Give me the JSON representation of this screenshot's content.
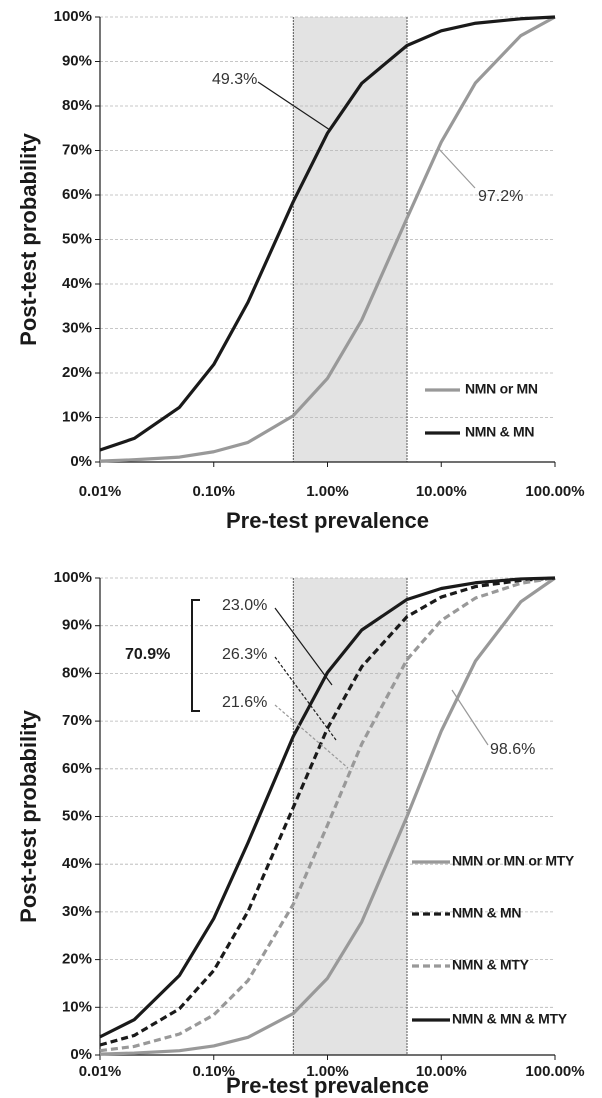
{
  "chart_data": [
    {
      "type": "line",
      "xscale": "log",
      "grid": true,
      "legend": "lower right",
      "xlabel": "Pre-test prevalence",
      "ylabel": "Post-test probability",
      "shaded_range": [
        0.5,
        5
      ],
      "x": [
        0.01,
        0.02,
        0.05,
        0.1,
        0.2,
        0.5,
        1,
        2,
        5,
        10,
        20,
        50,
        100
      ],
      "xlim": [
        0.01,
        100
      ],
      "xticks": [
        {
          "value": 0.01,
          "label": "0.01%"
        },
        {
          "value": 0.1,
          "label": "0.10%"
        },
        {
          "value": 1,
          "label": "1.00%"
        },
        {
          "value": 10,
          "label": "10.00%"
        },
        {
          "value": 100,
          "label": "100.00%"
        }
      ],
      "ylim": [
        0,
        100
      ],
      "yticks": [
        {
          "value": 0,
          "label": "0%"
        },
        {
          "value": 10,
          "label": "10%"
        },
        {
          "value": 20,
          "label": "20%"
        },
        {
          "value": 30,
          "label": "30%"
        },
        {
          "value": 40,
          "label": "40%"
        },
        {
          "value": 50,
          "label": "50%"
        },
        {
          "value": 60,
          "label": "60%"
        },
        {
          "value": 70,
          "label": "70%"
        },
        {
          "value": 80,
          "label": "80%"
        },
        {
          "value": 90,
          "label": "90%"
        },
        {
          "value": 100,
          "label": "100%"
        }
      ],
      "annotations": [
        "49.3%",
        "97.2%"
      ],
      "series": [
        {
          "name": "NMN or MN",
          "color": "#999999",
          "linestyle": "solid",
          "values": [
            0.2,
            0.5,
            1.1,
            2.3,
            4.4,
            10.4,
            18.8,
            31.9,
            54.8,
            71.9,
            85.2,
            95.8,
            100
          ]
        },
        {
          "name": "NMN & MN",
          "color": "#1a1a1a",
          "linestyle": "solid",
          "values": [
            2.7,
            5.3,
            12.3,
            21.9,
            35.9,
            58.5,
            73.9,
            85.1,
            93.6,
            96.9,
            98.6,
            99.6,
            100
          ]
        }
      ]
    },
    {
      "type": "line",
      "xscale": "log",
      "grid": true,
      "legend": "lower right",
      "xlabel": "Pre-test prevalence",
      "ylabel": "Post-test probability",
      "shaded_range": [
        0.5,
        5
      ],
      "x": [
        0.01,
        0.02,
        0.05,
        0.1,
        0.2,
        0.5,
        1,
        2,
        5,
        10,
        20,
        50,
        100
      ],
      "xlim": [
        0.01,
        100
      ],
      "xticks": [
        {
          "value": 0.01,
          "label": "0.01%"
        },
        {
          "value": 0.1,
          "label": "0.10%"
        },
        {
          "value": 1,
          "label": "1.00%"
        },
        {
          "value": 10,
          "label": "10.00%"
        },
        {
          "value": 100,
          "label": "100.00%"
        }
      ],
      "ylim": [
        0,
        100
      ],
      "yticks": [
        {
          "value": 0,
          "label": "0%"
        },
        {
          "value": 10,
          "label": "10%"
        },
        {
          "value": 20,
          "label": "20%"
        },
        {
          "value": 30,
          "label": "30%"
        },
        {
          "value": 40,
          "label": "40%"
        },
        {
          "value": 50,
          "label": "50%"
        },
        {
          "value": 60,
          "label": "60%"
        },
        {
          "value": 70,
          "label": "70%"
        },
        {
          "value": 80,
          "label": "80%"
        },
        {
          "value": 90,
          "label": "90%"
        },
        {
          "value": 100,
          "label": "100%"
        }
      ],
      "annotations": [
        "70.9%",
        "23.0%",
        "26.3%",
        "21.6%",
        "98.6%"
      ],
      "series": [
        {
          "name": "NMN or MN or MTY",
          "color": "#999999",
          "linestyle": "solid",
          "values": [
            0.2,
            0.4,
            0.9,
            1.9,
            3.7,
            8.7,
            16.1,
            27.9,
            50.0,
            67.9,
            82.6,
            95.0,
            100
          ]
        },
        {
          "name": "NMN & MN",
          "color": "#1a1a1a",
          "linestyle": "dashed",
          "values": [
            2.1,
            4.1,
            9.7,
            17.7,
            30.1,
            51.9,
            68.5,
            81.4,
            91.9,
            96.0,
            98.2,
            99.5,
            100
          ]
        },
        {
          "name": "NMN & MTY",
          "color": "#999999",
          "linestyle": "dashed",
          "values": [
            0.9,
            1.8,
            4.4,
            8.4,
            15.6,
            31.6,
            48.2,
            65.2,
            82.9,
            91.1,
            95.8,
            98.9,
            100
          ]
        },
        {
          "name": "NMN & MN & MTY",
          "color": "#1a1a1a",
          "linestyle": "solid",
          "values": [
            3.8,
            7.4,
            16.7,
            28.6,
            44.5,
            66.8,
            80.2,
            89.1,
            95.5,
            97.8,
            99.0,
            99.8,
            100
          ]
        }
      ]
    }
  ]
}
